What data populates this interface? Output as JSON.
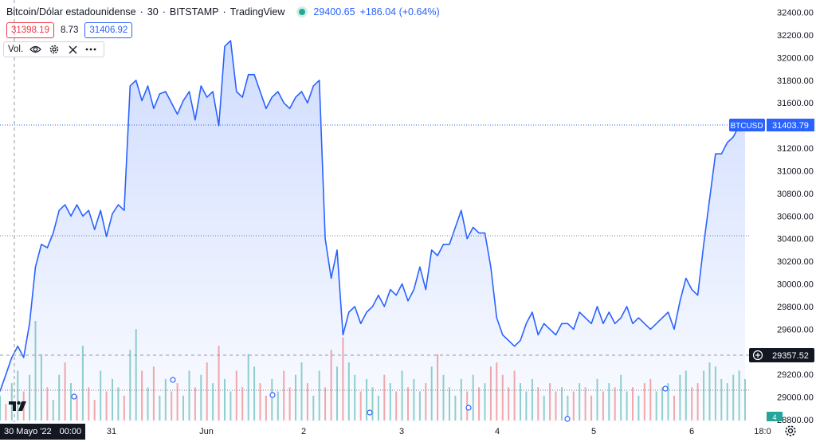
{
  "header": {
    "symbol": "Bitcoin/Dólar estadounidense",
    "interval": "30",
    "exchange": "BITSTAMP",
    "source": "TradingView",
    "last_price": "29400.65",
    "change": "+186.04 (+0.64%)"
  },
  "quote": {
    "bid": "31398.19",
    "spread": "8.73",
    "ask": "31406.92"
  },
  "volume_indicator": {
    "label": "Vol."
  },
  "price_labels": {
    "symbol_tag": "BTCUSD",
    "current": "31403.79",
    "crosshair": "29357.52"
  },
  "crosshair_date": {
    "date": "30 Mayo '22",
    "time": "00:00"
  },
  "colors": {
    "line": "#2962ff",
    "area_fill": "#dbe3fd",
    "volume_up": "#26a69a",
    "volume_down": "#ef5350",
    "text": "#131722"
  },
  "chart_data": {
    "type": "area",
    "title": "",
    "xlabel": "",
    "ylabel": "",
    "ylim": [
      28800,
      32500
    ],
    "y_ticks": [
      "32400.00",
      "32200.00",
      "32000.00",
      "31800.00",
      "31600.00",
      "31400.00",
      "31200.00",
      "31000.00",
      "30800.00",
      "30600.00",
      "30400.00",
      "30200.00",
      "30000.00",
      "29800.00",
      "29600.00",
      "29400.00",
      "29200.00",
      "29000.00",
      "28800.00"
    ],
    "x_ticks": [
      "31",
      "Jun",
      "2",
      "3",
      "4",
      "5",
      "6",
      "18:0"
    ],
    "grid": false,
    "series": [
      {
        "values": [
          29050,
          29200,
          29350,
          29450,
          29350,
          29650,
          30150,
          30350,
          30320,
          30450,
          30650,
          30700,
          30600,
          30700,
          30600,
          30650,
          30480,
          30650,
          30420,
          30620,
          30700,
          30650,
          31750,
          31800,
          31620,
          31750,
          31550,
          31680,
          31700,
          31600,
          31500,
          31620,
          31700,
          31450,
          31750,
          31650,
          31700,
          31400,
          32100,
          32150,
          31700,
          31650,
          31850,
          31850,
          31700,
          31550,
          31650,
          31700,
          31600,
          31550,
          31650,
          31700,
          31600,
          31750,
          31800,
          30400,
          30050,
          30300,
          29550,
          29750,
          29800,
          29650,
          29750,
          29800,
          29900,
          29800,
          29950,
          29900,
          30000,
          29850,
          29950,
          30150,
          29950,
          30300,
          30250,
          30350,
          30350,
          30500,
          30650,
          30400,
          30500,
          30450,
          30450,
          30150,
          29700,
          29550,
          29500,
          29450,
          29500,
          29650,
          29750,
          29550,
          29650,
          29600,
          29550,
          29650,
          29650,
          29600,
          29750,
          29700,
          29650,
          29800,
          29650,
          29750,
          29650,
          29700,
          29800,
          29650,
          29700,
          29650,
          29600,
          29650,
          29700,
          29750,
          29600,
          29850,
          30050,
          29950,
          29900,
          30350,
          30750,
          31150,
          31150,
          31250,
          31300,
          31400,
          31420
        ]
      }
    ],
    "volume_series": {
      "values": [
        30,
        20,
        45,
        60,
        35,
        55,
        120,
        80,
        40,
        25,
        55,
        70,
        45,
        30,
        90,
        40,
        25,
        60,
        35,
        50,
        40,
        30,
        85,
        110,
        60,
        40,
        65,
        30,
        50,
        35,
        45,
        30,
        60,
        40,
        55,
        70,
        45,
        90,
        50,
        35,
        60,
        40,
        80,
        65,
        45,
        30,
        50,
        35,
        60,
        40,
        55,
        70,
        45,
        30,
        60,
        40,
        85,
        65,
        100,
        70,
        55,
        35,
        50,
        40,
        30,
        55,
        45,
        35,
        60,
        40,
        50,
        35,
        45,
        65,
        80,
        55,
        40,
        30,
        50,
        35,
        55,
        40,
        45,
        65,
        70,
        55,
        40,
        60,
        45,
        35,
        50,
        40,
        30,
        45,
        35,
        40,
        30,
        35,
        45,
        40,
        30,
        50,
        35,
        45,
        40,
        55,
        35,
        40,
        30,
        45,
        50,
        35,
        40,
        45,
        30,
        55,
        60,
        40,
        45,
        60,
        70,
        65,
        50,
        45,
        55,
        60,
        50
      ],
      "up": [
        1,
        0,
        1,
        1,
        0,
        1,
        1,
        1,
        0,
        1,
        1,
        0,
        1,
        0,
        1,
        0,
        0,
        1,
        0,
        1,
        1,
        0,
        1,
        1,
        0,
        1,
        0,
        1,
        1,
        0,
        0,
        1,
        1,
        0,
        1,
        0,
        1,
        0,
        1,
        1,
        0,
        0,
        1,
        1,
        0,
        0,
        1,
        1,
        0,
        0,
        1,
        1,
        0,
        1,
        1,
        0,
        0,
        1,
        0,
        1,
        1,
        0,
        1,
        1,
        1,
        0,
        1,
        0,
        1,
        0,
        1,
        1,
        0,
        1,
        0,
        1,
        1,
        1,
        1,
        0,
        1,
        0,
        1,
        0,
        0,
        0,
        0,
        0,
        1,
        1,
        1,
        0,
        1,
        0,
        0,
        1,
        1,
        0,
        1,
        0,
        0,
        1,
        0,
        1,
        0,
        1,
        1,
        0,
        1,
        0,
        0,
        1,
        1,
        1,
        0,
        1,
        1,
        0,
        0,
        1,
        1,
        1,
        1,
        1,
        1,
        1,
        1
      ]
    }
  }
}
